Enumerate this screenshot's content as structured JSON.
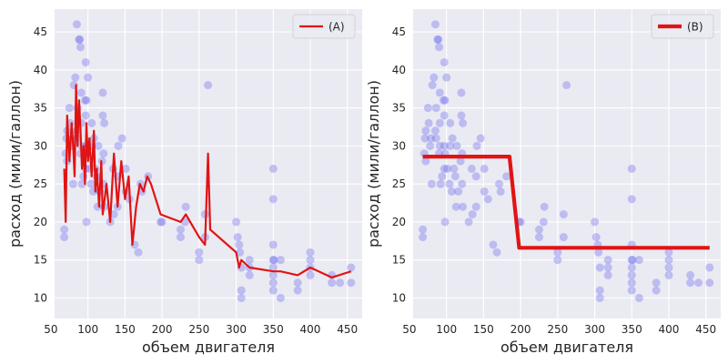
{
  "chart_data": [
    {
      "type": "scatter",
      "legend": "(A)",
      "legend_position": "top-right",
      "xlabel": "объем двигателя",
      "ylabel": "расход (мили/галлон)",
      "xlim": [
        55,
        470
      ],
      "ylim": [
        7.3,
        48
      ],
      "xticks": [
        50,
        100,
        150,
        200,
        250,
        300,
        350,
        400,
        450
      ],
      "yticks": [
        10,
        15,
        20,
        25,
        30,
        35,
        40,
        45
      ],
      "grid": true,
      "points_color": "#7070f0",
      "line_color": "#e01414",
      "points": [
        [
          68,
          18
        ],
        [
          68,
          19
        ],
        [
          70,
          29
        ],
        [
          71,
          31
        ],
        [
          72,
          32
        ],
        [
          72,
          28
        ],
        [
          75,
          35
        ],
        [
          76,
          33
        ],
        [
          78,
          30
        ],
        [
          79,
          31
        ],
        [
          80,
          25
        ],
        [
          81,
          38
        ],
        [
          83,
          39
        ],
        [
          85,
          46
        ],
        [
          85,
          32
        ],
        [
          86,
          35
        ],
        [
          86,
          31
        ],
        [
          88,
          44
        ],
        [
          89,
          44
        ],
        [
          90,
          43
        ],
        [
          90,
          29
        ],
        [
          91,
          37
        ],
        [
          91,
          33
        ],
        [
          91,
          30
        ],
        [
          92,
          25
        ],
        [
          94,
          26
        ],
        [
          96,
          36
        ],
        [
          97,
          27
        ],
        [
          97,
          30
        ],
        [
          97,
          34
        ],
        [
          97,
          41
        ],
        [
          98,
          29
        ],
        [
          98,
          20
        ],
        [
          98,
          36
        ],
        [
          100,
          39
        ],
        [
          101,
          27
        ],
        [
          104,
          25
        ],
        [
          105,
          33
        ],
        [
          105,
          30
        ],
        [
          107,
          24
        ],
        [
          108,
          31
        ],
        [
          110,
          27
        ],
        [
          112,
          26
        ],
        [
          113,
          22
        ],
        [
          114,
          30
        ],
        [
          116,
          24
        ],
        [
          119,
          28
        ],
        [
          120,
          34
        ],
        [
          120,
          37
        ],
        [
          121,
          25
        ],
        [
          121,
          29
        ],
        [
          122,
          22
        ],
        [
          122,
          33
        ],
        [
          130,
          20
        ],
        [
          134,
          27
        ],
        [
          135,
          21
        ],
        [
          140,
          22
        ],
        [
          140,
          26
        ],
        [
          141,
          30
        ],
        [
          146,
          31
        ],
        [
          151,
          24
        ],
        [
          151,
          27
        ],
        [
          156,
          23
        ],
        [
          163,
          17
        ],
        [
          168,
          16
        ],
        [
          171,
          25
        ],
        [
          173,
          24
        ],
        [
          181,
          26
        ],
        [
          198,
          20
        ],
        [
          200,
          20
        ],
        [
          225,
          18
        ],
        [
          225,
          19
        ],
        [
          231,
          20
        ],
        [
          232,
          22
        ],
        [
          250,
          16
        ],
        [
          250,
          15
        ],
        [
          258,
          21
        ],
        [
          258,
          18
        ],
        [
          262,
          38
        ],
        [
          300,
          20
        ],
        [
          302,
          18
        ],
        [
          304,
          17
        ],
        [
          305,
          16
        ],
        [
          307,
          11
        ],
        [
          307,
          10
        ],
        [
          307,
          14
        ],
        [
          318,
          14
        ],
        [
          318,
          13
        ],
        [
          318,
          15
        ],
        [
          350,
          23
        ],
        [
          350,
          14
        ],
        [
          350,
          17
        ],
        [
          350,
          27
        ],
        [
          350,
          15
        ],
        [
          350,
          11
        ],
        [
          350,
          12
        ],
        [
          350,
          13
        ],
        [
          351,
          15
        ],
        [
          360,
          15
        ],
        [
          360,
          10
        ],
        [
          383,
          11
        ],
        [
          383,
          12
        ],
        [
          400,
          16
        ],
        [
          400,
          13
        ],
        [
          400,
          14
        ],
        [
          400,
          15
        ],
        [
          429,
          13
        ],
        [
          429,
          12
        ],
        [
          440,
          12
        ],
        [
          455,
          12
        ],
        [
          455,
          14
        ]
      ],
      "line": [
        [
          68,
          27
        ],
        [
          70,
          20
        ],
        [
          72,
          34
        ],
        [
          75,
          28
        ],
        [
          78,
          33
        ],
        [
          80,
          30
        ],
        [
          82,
          26
        ],
        [
          84,
          38
        ],
        [
          86,
          30
        ],
        [
          88,
          36
        ],
        [
          90,
          32
        ],
        [
          92,
          27
        ],
        [
          94,
          30
        ],
        [
          96,
          25
        ],
        [
          98,
          33
        ],
        [
          100,
          28
        ],
        [
          102,
          31
        ],
        [
          105,
          26
        ],
        [
          108,
          32
        ],
        [
          110,
          24
        ],
        [
          112,
          27
        ],
        [
          115,
          22
        ],
        [
          118,
          28
        ],
        [
          120,
          21
        ],
        [
          125,
          25
        ],
        [
          130,
          20
        ],
        [
          135,
          29
        ],
        [
          140,
          22
        ],
        [
          145,
          28
        ],
        [
          150,
          23
        ],
        [
          155,
          26
        ],
        [
          160,
          17
        ],
        [
          165,
          22
        ],
        [
          170,
          25
        ],
        [
          175,
          24
        ],
        [
          180,
          26
        ],
        [
          185,
          25
        ],
        [
          198,
          21
        ],
        [
          225,
          20
        ],
        [
          232,
          21
        ],
        [
          250,
          18
        ],
        [
          258,
          17
        ],
        [
          262,
          29
        ],
        [
          265,
          19
        ],
        [
          300,
          16
        ],
        [
          304,
          14
        ],
        [
          307,
          15
        ],
        [
          318,
          14
        ],
        [
          350,
          13.5
        ],
        [
          360,
          13.5
        ],
        [
          383,
          13
        ],
        [
          400,
          14
        ],
        [
          429,
          12.7
        ],
        [
          455,
          13.5
        ]
      ]
    },
    {
      "type": "scatter",
      "legend": "(B)",
      "legend_position": "top-right",
      "xlabel": "объем двигателя",
      "ylabel": "расход (мили/галлон)",
      "xlim": [
        55,
        470
      ],
      "ylim": [
        7.3,
        48
      ],
      "xticks": [
        50,
        100,
        150,
        200,
        250,
        300,
        350,
        400,
        450
      ],
      "yticks": [
        10,
        15,
        20,
        25,
        30,
        35,
        40,
        45
      ],
      "grid": true,
      "points_color": "#7070f0",
      "line_color": "#e01414",
      "points": [
        [
          68,
          18
        ],
        [
          68,
          19
        ],
        [
          70,
          29
        ],
        [
          71,
          31
        ],
        [
          72,
          32
        ],
        [
          72,
          28
        ],
        [
          75,
          35
        ],
        [
          76,
          33
        ],
        [
          78,
          30
        ],
        [
          79,
          31
        ],
        [
          80,
          25
        ],
        [
          81,
          38
        ],
        [
          83,
          39
        ],
        [
          85,
          46
        ],
        [
          85,
          32
        ],
        [
          86,
          35
        ],
        [
          86,
          31
        ],
        [
          88,
          44
        ],
        [
          89,
          44
        ],
        [
          90,
          43
        ],
        [
          90,
          29
        ],
        [
          91,
          37
        ],
        [
          91,
          33
        ],
        [
          91,
          30
        ],
        [
          92,
          25
        ],
        [
          94,
          26
        ],
        [
          96,
          36
        ],
        [
          97,
          27
        ],
        [
          97,
          30
        ],
        [
          97,
          34
        ],
        [
          97,
          41
        ],
        [
          98,
          29
        ],
        [
          98,
          20
        ],
        [
          98,
          36
        ],
        [
          100,
          39
        ],
        [
          101,
          27
        ],
        [
          104,
          25
        ],
        [
          105,
          33
        ],
        [
          105,
          30
        ],
        [
          107,
          24
        ],
        [
          108,
          31
        ],
        [
          110,
          27
        ],
        [
          112,
          26
        ],
        [
          113,
          22
        ],
        [
          114,
          30
        ],
        [
          116,
          24
        ],
        [
          119,
          28
        ],
        [
          120,
          34
        ],
        [
          120,
          37
        ],
        [
          121,
          25
        ],
        [
          121,
          29
        ],
        [
          122,
          22
        ],
        [
          122,
          33
        ],
        [
          130,
          20
        ],
        [
          134,
          27
        ],
        [
          135,
          21
        ],
        [
          140,
          22
        ],
        [
          140,
          26
        ],
        [
          141,
          30
        ],
        [
          146,
          31
        ],
        [
          151,
          24
        ],
        [
          151,
          27
        ],
        [
          156,
          23
        ],
        [
          163,
          17
        ],
        [
          168,
          16
        ],
        [
          171,
          25
        ],
        [
          173,
          24
        ],
        [
          181,
          26
        ],
        [
          198,
          20
        ],
        [
          200,
          20
        ],
        [
          225,
          18
        ],
        [
          225,
          19
        ],
        [
          231,
          20
        ],
        [
          232,
          22
        ],
        [
          250,
          16
        ],
        [
          250,
          15
        ],
        [
          258,
          21
        ],
        [
          258,
          18
        ],
        [
          262,
          38
        ],
        [
          300,
          20
        ],
        [
          302,
          18
        ],
        [
          304,
          17
        ],
        [
          305,
          16
        ],
        [
          307,
          11
        ],
        [
          307,
          10
        ],
        [
          307,
          14
        ],
        [
          318,
          14
        ],
        [
          318,
          13
        ],
        [
          318,
          15
        ],
        [
          350,
          23
        ],
        [
          350,
          14
        ],
        [
          350,
          17
        ],
        [
          350,
          27
        ],
        [
          350,
          15
        ],
        [
          350,
          11
        ],
        [
          350,
          12
        ],
        [
          350,
          13
        ],
        [
          351,
          15
        ],
        [
          360,
          15
        ],
        [
          360,
          10
        ],
        [
          383,
          11
        ],
        [
          383,
          12
        ],
        [
          400,
          16
        ],
        [
          400,
          13
        ],
        [
          400,
          14
        ],
        [
          400,
          15
        ],
        [
          429,
          13
        ],
        [
          429,
          12
        ],
        [
          440,
          12
        ],
        [
          455,
          12
        ],
        [
          455,
          14
        ]
      ],
      "line": [
        [
          68,
          28.6
        ],
        [
          185,
          28.6
        ],
        [
          198,
          16.6
        ],
        [
          455,
          16.6
        ]
      ]
    }
  ]
}
